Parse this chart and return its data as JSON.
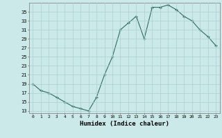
{
  "x": [
    0,
    1,
    2,
    3,
    4,
    5,
    6,
    7,
    8,
    9,
    10,
    11,
    12,
    13,
    14,
    15,
    16,
    17,
    18,
    19,
    20,
    21,
    22,
    23
  ],
  "y": [
    19,
    17.5,
    17,
    16,
    15,
    14,
    13.5,
    13,
    16,
    21,
    25,
    31,
    32.5,
    34,
    29,
    36,
    36,
    36.5,
    35.5,
    34,
    33,
    31,
    29.5,
    27.5
  ],
  "line_color": "#2d6b5e",
  "marker": "+",
  "bg_color": "#cce9e9",
  "grid_color": "#aacfcf",
  "xlabel": "Humidex (Indice chaleur)",
  "yticks": [
    13,
    15,
    17,
    19,
    21,
    23,
    25,
    27,
    29,
    31,
    33,
    35
  ],
  "xticks": [
    0,
    1,
    2,
    3,
    4,
    5,
    6,
    7,
    8,
    9,
    10,
    11,
    12,
    13,
    14,
    15,
    16,
    17,
    18,
    19,
    20,
    21,
    22,
    23
  ],
  "ylim": [
    12.5,
    37.0
  ],
  "xlim": [
    -0.5,
    23.5
  ],
  "font_color": "#000000",
  "axis_color": "#888888"
}
